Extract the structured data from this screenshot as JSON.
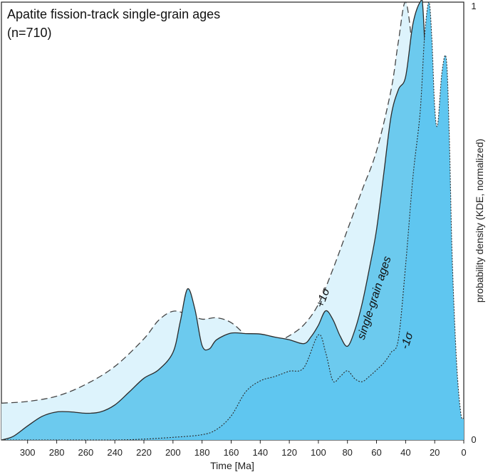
{
  "chart_data": {
    "type": "area",
    "title": "Apatite fission-track single-grain ages",
    "subtitle": "(n=710)",
    "xlabel": "Time [Ma]",
    "ylabel": "probability density (KDE, normalized)",
    "xlim": [
      318,
      0
    ],
    "ylim": [
      0,
      1
    ],
    "x_ticks": [
      300,
      280,
      260,
      240,
      220,
      200,
      180,
      160,
      140,
      120,
      100,
      80,
      60,
      40,
      20,
      0
    ],
    "y_ticks": [
      0,
      1
    ],
    "grid": false,
    "series": [
      {
        "name": "+1σ",
        "x": [
          318,
          300,
          280,
          260,
          240,
          220,
          210,
          200,
          190,
          180,
          170,
          160,
          150,
          140,
          130,
          120,
          110,
          100,
          90,
          80,
          70,
          60,
          50,
          45,
          40,
          35,
          30,
          25,
          20,
          15,
          10,
          5,
          0
        ],
        "y": [
          0.084,
          0.088,
          0.1,
          0.127,
          0.168,
          0.231,
          0.273,
          0.294,
          0.287,
          0.276,
          0.279,
          0.268,
          0.239,
          0.211,
          0.222,
          0.238,
          0.263,
          0.31,
          0.39,
          0.48,
          0.57,
          0.66,
          0.8,
          0.91,
          1.0,
          0.88,
          0.67,
          0.52,
          0.42,
          0.3,
          0.14,
          0.06,
          0.03
        ]
      },
      {
        "name": "single-grain ages",
        "x": [
          318,
          310,
          300,
          290,
          280,
          270,
          260,
          250,
          240,
          230,
          220,
          210,
          200,
          195,
          190,
          185,
          180,
          175,
          170,
          160,
          150,
          140,
          130,
          120,
          110,
          105,
          100,
          95,
          90,
          85,
          80,
          75,
          70,
          65,
          60,
          55,
          50,
          45,
          40,
          35,
          30,
          28,
          25,
          20,
          15,
          10,
          5,
          0
        ],
        "y": [
          0.0,
          0.008,
          0.032,
          0.054,
          0.064,
          0.064,
          0.061,
          0.064,
          0.08,
          0.11,
          0.141,
          0.16,
          0.2,
          0.27,
          0.345,
          0.3,
          0.216,
          0.208,
          0.229,
          0.244,
          0.243,
          0.242,
          0.235,
          0.229,
          0.22,
          0.236,
          0.262,
          0.295,
          0.275,
          0.237,
          0.214,
          0.25,
          0.31,
          0.39,
          0.48,
          0.61,
          0.74,
          0.8,
          0.83,
          0.95,
          1.0,
          0.98,
          0.75,
          0.35,
          0.14,
          0.06,
          0.02,
          0.005
        ]
      },
      {
        "name": "-1σ",
        "x": [
          318,
          280,
          240,
          220,
          200,
          180,
          170,
          160,
          150,
          140,
          130,
          120,
          110,
          100,
          95,
          90,
          85,
          80,
          75,
          70,
          65,
          60,
          55,
          50,
          45,
          40,
          35,
          30,
          27,
          24,
          22,
          20,
          18,
          15,
          12,
          10,
          8,
          5,
          2,
          0
        ],
        "y": [
          0.0,
          0.0,
          0.0,
          0.002,
          0.006,
          0.012,
          0.024,
          0.055,
          0.11,
          0.135,
          0.145,
          0.157,
          0.165,
          0.24,
          0.2,
          0.135,
          0.145,
          0.158,
          0.14,
          0.133,
          0.145,
          0.16,
          0.176,
          0.2,
          0.23,
          0.4,
          0.6,
          0.75,
          0.92,
          1.0,
          0.92,
          0.76,
          0.72,
          0.84,
          0.87,
          0.7,
          0.42,
          0.18,
          0.06,
          0.05
        ]
      }
    ],
    "annotations": [
      "+1σ",
      "single-grain ages",
      "-1σ"
    ]
  }
}
